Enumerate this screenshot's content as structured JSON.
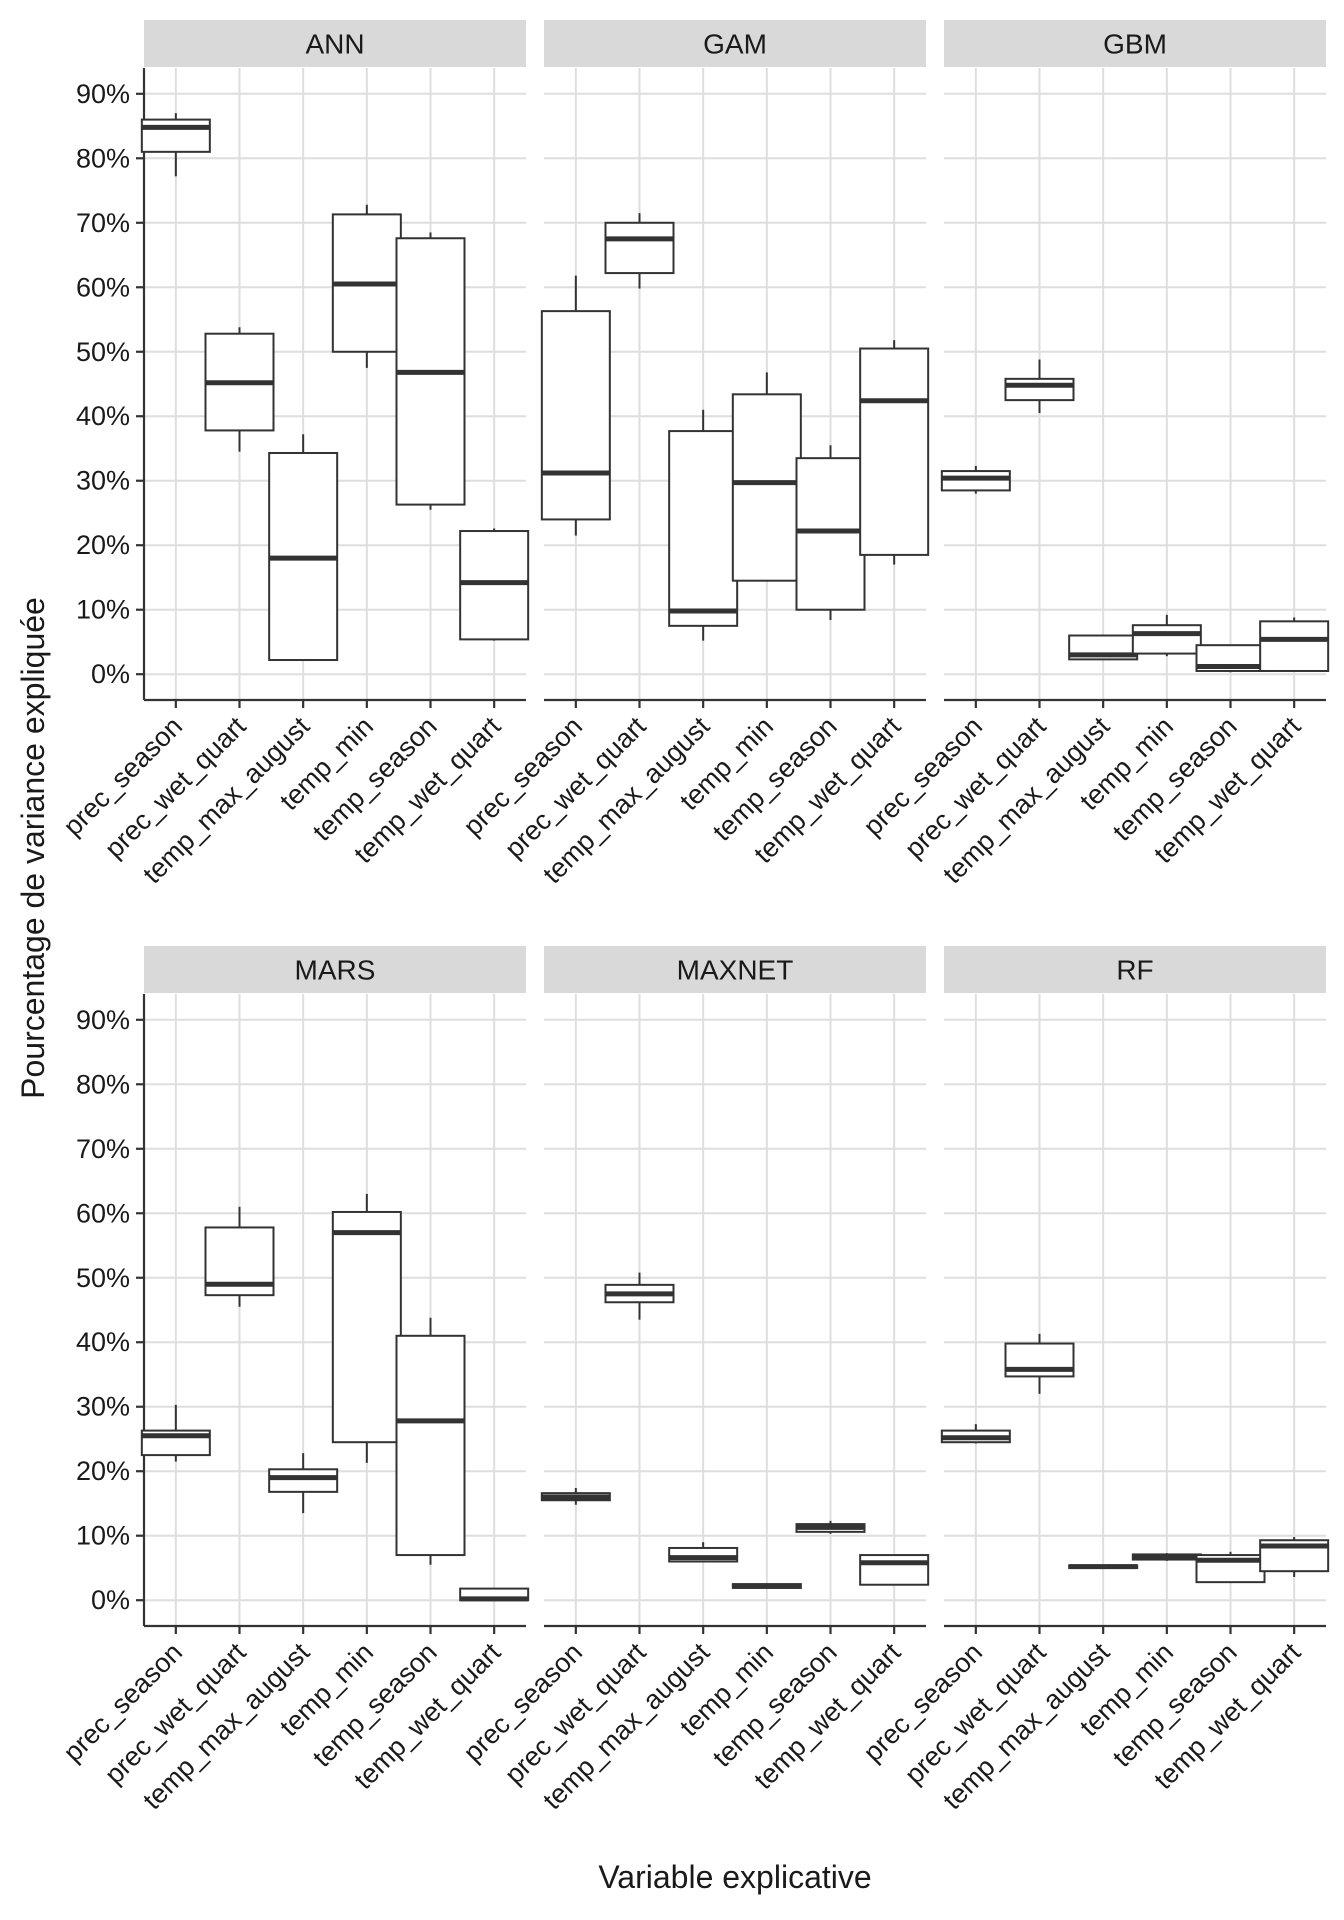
{
  "chart_data": {
    "type": "boxplot",
    "layout": "facet grid, 2 rows x 3 columns",
    "xlabel": "Variable explicative",
    "ylabel": "Pourcentage de variance expliquée",
    "ylim": [
      -4,
      94
    ],
    "yticks": [
      0,
      10,
      20,
      30,
      40,
      50,
      60,
      70,
      80,
      90
    ],
    "ytick_labels": [
      "0%",
      "10%",
      "20%",
      "30%",
      "40%",
      "50%",
      "60%",
      "70%",
      "80%",
      "90%"
    ],
    "categories": [
      "prec_season",
      "prec_wet_quart",
      "temp_max_august",
      "temp_min",
      "temp_season",
      "temp_wet_quart"
    ],
    "panels": [
      {
        "name": "ANN",
        "boxes": [
          {
            "min": 77.2,
            "q1": 81.0,
            "median": 84.8,
            "q3": 86.0,
            "max": 87.0
          },
          {
            "min": 34.5,
            "q1": 37.8,
            "median": 45.2,
            "q3": 52.8,
            "max": 53.8
          },
          {
            "min": 2.2,
            "q1": 2.2,
            "median": 18.0,
            "q3": 34.3,
            "max": 37.2
          },
          {
            "min": 47.5,
            "q1": 50.0,
            "median": 60.5,
            "q3": 71.3,
            "max": 72.8
          },
          {
            "min": 25.5,
            "q1": 26.3,
            "median": 46.8,
            "q3": 67.6,
            "max": 68.5
          },
          {
            "min": 5.2,
            "q1": 5.4,
            "median": 14.2,
            "q3": 22.2,
            "max": 22.6
          }
        ]
      },
      {
        "name": "GAM",
        "boxes": [
          {
            "min": 21.5,
            "q1": 24.0,
            "median": 31.2,
            "q3": 56.3,
            "max": 61.8
          },
          {
            "min": 59.8,
            "q1": 62.2,
            "median": 67.5,
            "q3": 70.0,
            "max": 71.5
          },
          {
            "min": 5.2,
            "q1": 7.5,
            "median": 9.8,
            "q3": 37.7,
            "max": 41.0
          },
          {
            "min": 14.4,
            "q1": 14.5,
            "median": 29.7,
            "q3": 43.4,
            "max": 46.8
          },
          {
            "min": 8.4,
            "q1": 10.0,
            "median": 22.2,
            "q3": 33.5,
            "max": 35.5
          },
          {
            "min": 17.0,
            "q1": 18.5,
            "median": 42.4,
            "q3": 50.5,
            "max": 51.8
          }
        ]
      },
      {
        "name": "GBM",
        "boxes": [
          {
            "min": 28.0,
            "q1": 28.5,
            "median": 30.4,
            "q3": 31.5,
            "max": 32.3
          },
          {
            "min": 40.5,
            "q1": 42.5,
            "median": 44.8,
            "q3": 45.8,
            "max": 48.8
          },
          {
            "min": 2.2,
            "q1": 2.3,
            "median": 3.0,
            "q3": 6.0,
            "max": 6.1
          },
          {
            "min": 2.8,
            "q1": 3.2,
            "median": 6.3,
            "q3": 7.6,
            "max": 9.2
          },
          {
            "min": 0.3,
            "q1": 0.5,
            "median": 1.2,
            "q3": 4.5,
            "max": 4.6
          },
          {
            "min": 0.4,
            "q1": 0.5,
            "median": 5.4,
            "q3": 8.2,
            "max": 8.8
          }
        ]
      },
      {
        "name": "MARS",
        "boxes": [
          {
            "min": 21.5,
            "q1": 22.5,
            "median": 25.5,
            "q3": 26.3,
            "max": 30.3
          },
          {
            "min": 45.5,
            "q1": 47.3,
            "median": 49.0,
            "q3": 57.8,
            "max": 61.0
          },
          {
            "min": 13.5,
            "q1": 16.8,
            "median": 19.0,
            "q3": 20.3,
            "max": 22.8
          },
          {
            "min": 21.3,
            "q1": 24.5,
            "median": 57.0,
            "q3": 60.2,
            "max": 63.0
          },
          {
            "min": 5.5,
            "q1": 7.0,
            "median": 27.8,
            "q3": 41.0,
            "max": 43.8
          },
          {
            "min": 0.0,
            "q1": 0.0,
            "median": 0.2,
            "q3": 1.8,
            "max": 1.9
          }
        ]
      },
      {
        "name": "MAXNET",
        "boxes": [
          {
            "min": 14.8,
            "q1": 15.5,
            "median": 16.0,
            "q3": 16.6,
            "max": 17.4
          },
          {
            "min": 43.5,
            "q1": 46.2,
            "median": 47.5,
            "q3": 48.9,
            "max": 50.8
          },
          {
            "min": 5.9,
            "q1": 6.0,
            "median": 6.6,
            "q3": 8.1,
            "max": 9.0
          },
          {
            "min": 1.8,
            "q1": 1.9,
            "median": 2.2,
            "q3": 2.5,
            "max": 2.6
          },
          {
            "min": 10.3,
            "q1": 10.6,
            "median": 11.3,
            "q3": 11.8,
            "max": 12.3
          },
          {
            "min": 2.4,
            "q1": 2.4,
            "median": 5.8,
            "q3": 7.0,
            "max": 7.0
          }
        ]
      },
      {
        "name": "RF",
        "boxes": [
          {
            "min": 24.3,
            "q1": 24.5,
            "median": 25.2,
            "q3": 26.3,
            "max": 27.3
          },
          {
            "min": 32.0,
            "q1": 34.7,
            "median": 35.8,
            "q3": 39.8,
            "max": 41.3
          },
          {
            "min": 4.9,
            "q1": 5.0,
            "median": 5.2,
            "q3": 5.4,
            "max": 5.5
          },
          {
            "min": 6.1,
            "q1": 6.3,
            "median": 6.7,
            "q3": 7.1,
            "max": 7.3
          },
          {
            "min": 2.7,
            "q1": 2.8,
            "median": 6.2,
            "q3": 7.0,
            "max": 7.5
          },
          {
            "min": 3.6,
            "q1": 4.5,
            "median": 8.4,
            "q3": 9.3,
            "max": 9.8
          }
        ]
      }
    ]
  }
}
